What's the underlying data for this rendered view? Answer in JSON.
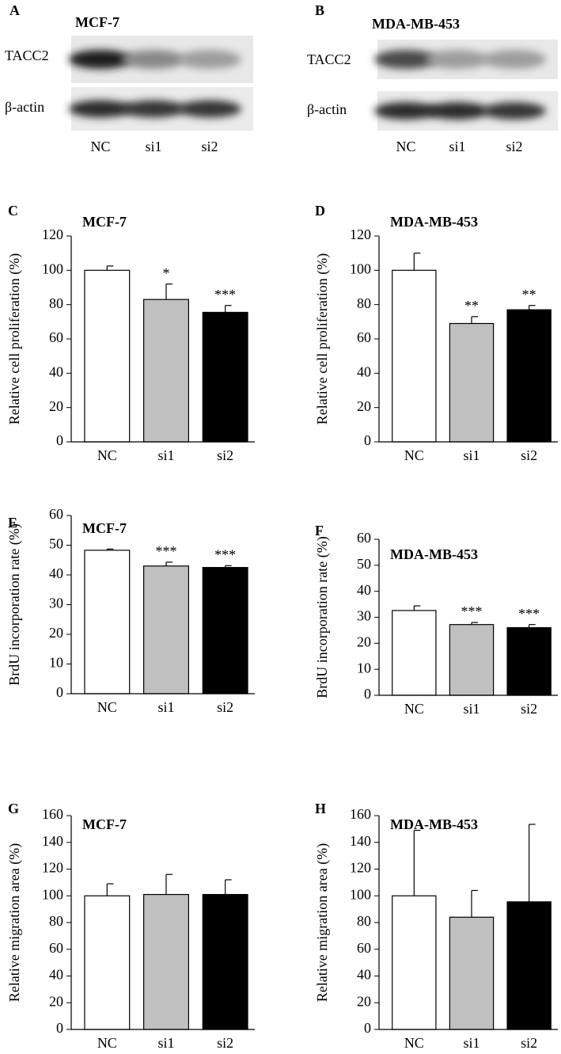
{
  "blots": [
    {
      "label": "A",
      "title": "MCF-7",
      "rows": [
        "TACC2",
        "β-actin"
      ],
      "lanes": [
        "NC",
        "si1",
        "si2"
      ]
    },
    {
      "label": "B",
      "title": "MDA-MB-453",
      "rows": [
        "TACC2",
        "β-actin"
      ],
      "lanes": [
        "NC",
        "si1",
        "si2"
      ]
    }
  ],
  "chart_data": [
    {
      "type": "bar",
      "label": "C",
      "title": "MCF-7",
      "y_label": "Relative cell proliferation (%)",
      "categories": [
        "NC",
        "si1",
        "si2"
      ],
      "values": [
        100,
        83,
        75.5
      ],
      "errors": [
        2.5,
        9,
        4
      ],
      "annotations": [
        null,
        "*",
        "***"
      ],
      "colors": [
        "#ffffff",
        "#c0c0c0",
        "#000000"
      ],
      "ylim": [
        0,
        120
      ],
      "yticks": [
        0,
        20,
        40,
        60,
        80,
        100,
        120
      ]
    },
    {
      "type": "bar",
      "label": "D",
      "title": "MDA-MB-453",
      "y_label": "Relative cell proliferation (%)",
      "categories": [
        "NC",
        "si1",
        "si2"
      ],
      "values": [
        100,
        69,
        77
      ],
      "errors": [
        10,
        4,
        2.5
      ],
      "annotations": [
        null,
        "**",
        "**"
      ],
      "colors": [
        "#ffffff",
        "#c0c0c0",
        "#000000"
      ],
      "ylim": [
        0,
        120
      ],
      "yticks": [
        0,
        20,
        40,
        60,
        80,
        100,
        120
      ]
    },
    {
      "type": "bar",
      "label": "E",
      "title": "MCF-7",
      "y_label": "BrdU incorporation rate (%)",
      "categories": [
        "NC",
        "si1",
        "si2"
      ],
      "values": [
        48.3,
        43,
        42.5
      ],
      "errors": [
        0.4,
        1.3,
        0.6
      ],
      "annotations": [
        null,
        "***",
        "***"
      ],
      "colors": [
        "#ffffff",
        "#c0c0c0",
        "#000000"
      ],
      "ylim": [
        0,
        60
      ],
      "yticks": [
        0,
        10,
        20,
        30,
        40,
        50,
        60
      ]
    },
    {
      "type": "bar",
      "label": "F",
      "title": "MDA-MB-453",
      "y_label": "BrdU incorporation rate (%)",
      "categories": [
        "NC",
        "si1",
        "si2"
      ],
      "values": [
        32.6,
        27.2,
        26
      ],
      "errors": [
        1.8,
        0.8,
        1.2
      ],
      "annotations": [
        null,
        "***",
        "***"
      ],
      "colors": [
        "#ffffff",
        "#c0c0c0",
        "#000000"
      ],
      "ylim": [
        0,
        60
      ],
      "yticks": [
        0,
        10,
        20,
        30,
        40,
        50,
        60
      ]
    },
    {
      "type": "bar",
      "label": "G",
      "title": "MCF-7",
      "y_label": "Relative migration area (%)",
      "categories": [
        "NC",
        "si1",
        "si2"
      ],
      "values": [
        100,
        101,
        101
      ],
      "errors": [
        9,
        15,
        11
      ],
      "colors": [
        "#ffffff",
        "#c0c0c0",
        "#000000"
      ],
      "ylim": [
        0,
        160
      ],
      "yticks": [
        0,
        20,
        40,
        60,
        80,
        100,
        120,
        140,
        160
      ]
    },
    {
      "type": "bar",
      "label": "H",
      "title": "MDA-MB-453",
      "y_label": "Relative migration area (%)",
      "categories": [
        "NC",
        "si1",
        "si2"
      ],
      "values": [
        100,
        84,
        95.5
      ],
      "errors": [
        49,
        20,
        58
      ],
      "colors": [
        "#ffffff",
        "#c0c0c0",
        "#000000"
      ],
      "ylim": [
        0,
        160
      ],
      "yticks": [
        0,
        20,
        40,
        60,
        80,
        100,
        120,
        140,
        160
      ]
    }
  ]
}
